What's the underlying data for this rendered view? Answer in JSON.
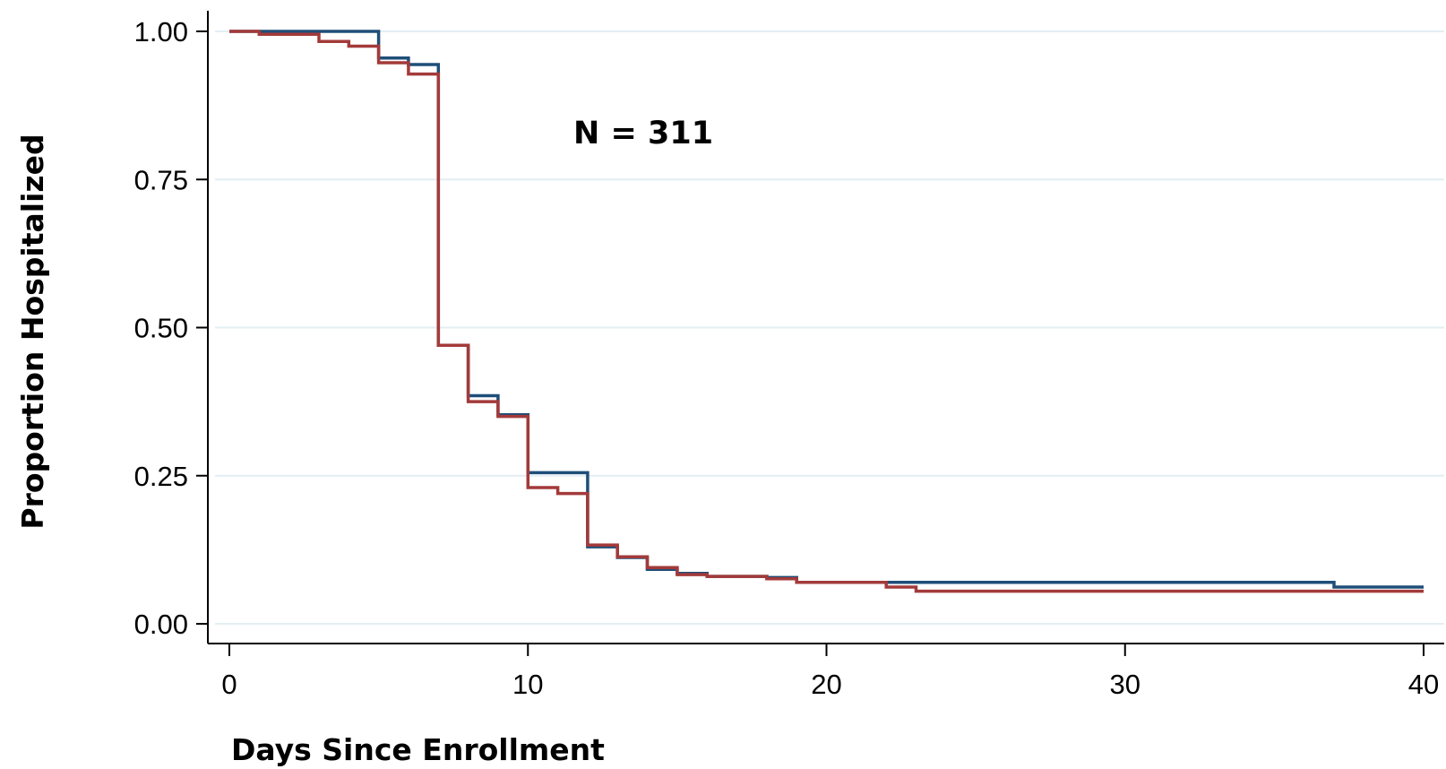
{
  "chart_data": {
    "type": "line",
    "step": "post",
    "xlabel": "Days Since Enrollment",
    "ylabel": "Proportion Hospitalized",
    "xlim": [
      0,
      40
    ],
    "ylim": [
      0,
      1
    ],
    "x_ticks": [
      "0",
      "10",
      "20",
      "30",
      "40"
    ],
    "y_ticks": [
      "0.00",
      "0.25",
      "0.50",
      "0.75",
      "1.00"
    ],
    "grid": "horizontal",
    "annotation": "N = 311",
    "colors": {
      "series_blue": "#1f4e79",
      "series_red": "#a33a3a",
      "grid": "#e3eef3"
    },
    "series": [
      {
        "color": "#1f4e79",
        "x": [
          0,
          1,
          4,
          5,
          6,
          7,
          8,
          9,
          10,
          12,
          13,
          14,
          15,
          16,
          18,
          19,
          28,
          37,
          40
        ],
        "y": [
          1.0,
          1.0,
          1.0,
          0.955,
          0.944,
          0.47,
          0.385,
          0.353,
          0.255,
          0.13,
          0.112,
          0.092,
          0.085,
          0.08,
          0.078,
          0.07,
          0.07,
          0.062,
          0.062
        ]
      },
      {
        "color": "#a33a3a",
        "x": [
          0,
          1,
          3,
          4,
          5,
          6,
          7,
          8,
          9,
          10,
          11,
          12,
          13,
          14,
          15,
          16,
          18,
          19,
          22,
          23,
          28,
          40
        ],
        "y": [
          1.0,
          0.995,
          0.983,
          0.975,
          0.947,
          0.928,
          0.47,
          0.375,
          0.35,
          0.23,
          0.22,
          0.133,
          0.113,
          0.095,
          0.083,
          0.08,
          0.076,
          0.07,
          0.062,
          0.055,
          0.055,
          0.055
        ]
      }
    ]
  }
}
